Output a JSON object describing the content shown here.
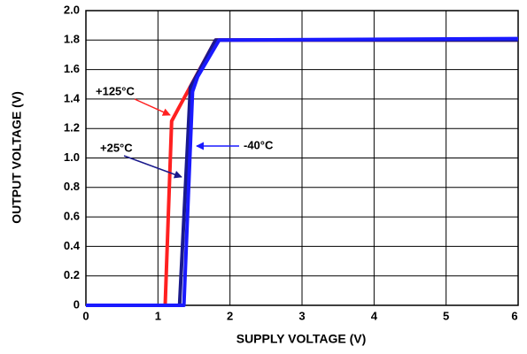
{
  "chart_data": {
    "type": "line",
    "xlabel": "SUPPLY VOLTAGE (V)",
    "ylabel": "OUTPUT VOLTAGE (V)",
    "xlim": [
      0,
      6
    ],
    "xticks": [
      0,
      1,
      2,
      3,
      4,
      5,
      6
    ],
    "ylim": [
      0,
      2
    ],
    "yticks": [
      0,
      0.2,
      0.4,
      0.6,
      0.8,
      {
        "value": 1,
        "label": "1.0"
      },
      1.2,
      1.4,
      1.6,
      1.8,
      {
        "value": 2,
        "label": "2.0"
      }
    ],
    "grid": true,
    "series": [
      {
        "name": "+125°C",
        "color": "#ff2020",
        "x": [
          0,
          1.1,
          1.19,
          1.3,
          1.8,
          6
        ],
        "values": [
          0,
          0,
          1.25,
          1.35,
          1.8,
          1.8
        ]
      },
      {
        "name": "+25°C",
        "color": "#1a1a8c",
        "x": [
          0,
          1.3,
          1.45,
          1.8,
          6
        ],
        "values": [
          0,
          0,
          1.48,
          1.8,
          1.8
        ]
      },
      {
        "name": "-40°C",
        "color": "#1a1aff",
        "x": [
          0,
          1.36,
          1.48,
          1.55,
          1.85,
          6
        ],
        "values": [
          0,
          0,
          1.45,
          1.55,
          1.8,
          1.81
        ]
      }
    ]
  }
}
